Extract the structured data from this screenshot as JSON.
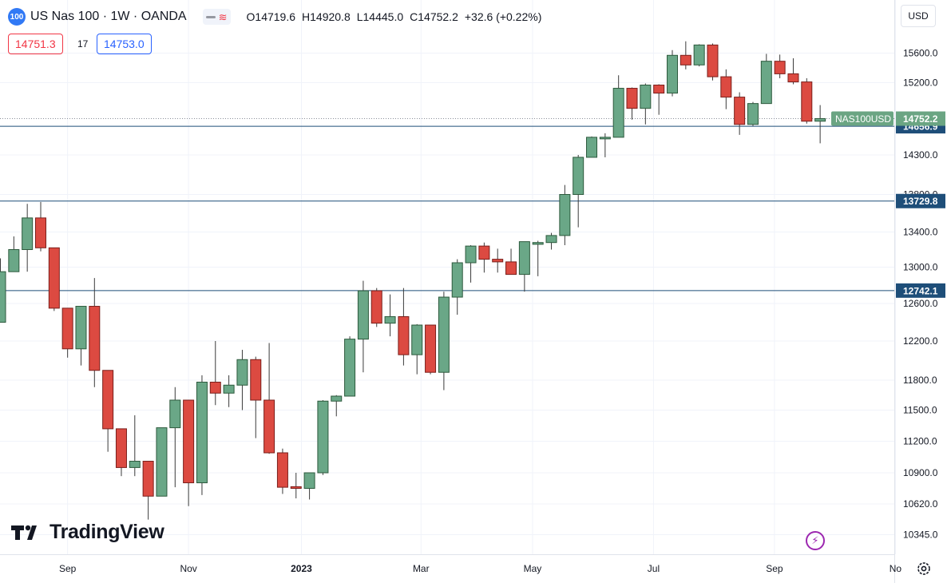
{
  "header": {
    "symbol_badge": "100",
    "title": "US Nas 100 · 1W · OANDA",
    "ohlc": {
      "o": "O14719.6",
      "h": "H14920.8",
      "l": "L14445.0",
      "c": "C14752.2",
      "chg": "+32.6 (+0.22%)"
    }
  },
  "trade": {
    "sell": "14751.3",
    "spread": "17",
    "buy": "14753.0"
  },
  "currency": "USD",
  "brand": "TradingView",
  "colors": {
    "up": "#6aa787",
    "down": "#dc4a41",
    "up_border": "#2d5a3d",
    "down_border": "#7a1f1b",
    "level_line": "#1e4e79",
    "price_tag": "#6ba583",
    "wick": "#3a3a3a"
  },
  "chart_data": {
    "type": "candlestick",
    "title": "US Nas 100 · 1W · OANDA",
    "y_ticks": [
      10345,
      10620,
      10900,
      11200,
      11500,
      11800,
      12200,
      12600,
      13000,
      13400,
      13800,
      14300,
      15200,
      15600
    ],
    "y_tick_labels": [
      "10345.0",
      "10620.0",
      "10900.0",
      "11200.0",
      "11500.0",
      "11800.0",
      "12200.0",
      "12600.0",
      "13000.0",
      "13400.0",
      "13800.0",
      "14300.0",
      "15200.0",
      "15600.0"
    ],
    "x_labels": [
      {
        "label": "Sep",
        "index": 5,
        "bold": false
      },
      {
        "label": "Nov",
        "index": 14,
        "bold": false
      },
      {
        "label": "2023",
        "index": 22.4,
        "bold": true
      },
      {
        "label": "Mar",
        "index": 31.3,
        "bold": false
      },
      {
        "label": "May",
        "index": 39.6,
        "bold": false
      },
      {
        "label": "Jul",
        "index": 48.6,
        "bold": false
      },
      {
        "label": "Sep",
        "index": 57.6,
        "bold": false
      },
      {
        "label": "No",
        "index": 66.6,
        "bold": false
      }
    ],
    "levels": [
      {
        "value": 14656.9,
        "label": "14656.9"
      },
      {
        "value": 13729.8,
        "label": "13729.8"
      },
      {
        "value": 12742.1,
        "label": "12742.1"
      }
    ],
    "current": {
      "symbol": "NAS100USD",
      "value": 14752.2,
      "label": "14752.2"
    },
    "candles": [
      {
        "o": 12400,
        "h": 13100,
        "l": 12400,
        "c": 12950
      },
      {
        "o": 12950,
        "h": 13350,
        "l": 12950,
        "c": 13200
      },
      {
        "o": 13200,
        "h": 13700,
        "l": 12950,
        "c": 13550
      },
      {
        "o": 13550,
        "h": 13720,
        "l": 13180,
        "c": 13220
      },
      {
        "o": 13220,
        "h": 13220,
        "l": 12520,
        "c": 12550
      },
      {
        "o": 12550,
        "h": 12550,
        "l": 12030,
        "c": 12120
      },
      {
        "o": 12120,
        "h": 12570,
        "l": 11950,
        "c": 12570
      },
      {
        "o": 12570,
        "h": 12880,
        "l": 11730,
        "c": 11900
      },
      {
        "o": 11900,
        "h": 11900,
        "l": 11100,
        "c": 11320
      },
      {
        "o": 11320,
        "h": 11320,
        "l": 10870,
        "c": 10950
      },
      {
        "o": 10950,
        "h": 11450,
        "l": 10870,
        "c": 11010
      },
      {
        "o": 11010,
        "h": 11010,
        "l": 10480,
        "c": 10690
      },
      {
        "o": 10690,
        "h": 11330,
        "l": 10690,
        "c": 11330
      },
      {
        "o": 11330,
        "h": 11730,
        "l": 10770,
        "c": 11600
      },
      {
        "o": 11600,
        "h": 11600,
        "l": 10600,
        "c": 10810
      },
      {
        "o": 10810,
        "h": 11850,
        "l": 10700,
        "c": 11780
      },
      {
        "o": 11780,
        "h": 12200,
        "l": 11550,
        "c": 11670
      },
      {
        "o": 11670,
        "h": 11850,
        "l": 11530,
        "c": 11750
      },
      {
        "o": 11750,
        "h": 12110,
        "l": 11500,
        "c": 12010
      },
      {
        "o": 12010,
        "h": 12040,
        "l": 11230,
        "c": 11600
      },
      {
        "o": 11600,
        "h": 12180,
        "l": 11080,
        "c": 11090
      },
      {
        "o": 11090,
        "h": 11130,
        "l": 10710,
        "c": 10770
      },
      {
        "o": 10775,
        "h": 10900,
        "l": 10670,
        "c": 10760
      },
      {
        "o": 10760,
        "h": 10900,
        "l": 10660,
        "c": 10900
      },
      {
        "o": 10900,
        "h": 11600,
        "l": 10880,
        "c": 11590
      },
      {
        "o": 11590,
        "h": 11650,
        "l": 11440,
        "c": 11640
      },
      {
        "o": 11640,
        "h": 12250,
        "l": 11640,
        "c": 12220
      },
      {
        "o": 12220,
        "h": 12850,
        "l": 11880,
        "c": 12740
      },
      {
        "o": 12740,
        "h": 12770,
        "l": 12350,
        "c": 12390
      },
      {
        "o": 12390,
        "h": 12700,
        "l": 12250,
        "c": 12460
      },
      {
        "o": 12460,
        "h": 12770,
        "l": 11950,
        "c": 12060
      },
      {
        "o": 12060,
        "h": 12380,
        "l": 11860,
        "c": 12370
      },
      {
        "o": 12370,
        "h": 12370,
        "l": 11860,
        "c": 11880
      },
      {
        "o": 11880,
        "h": 12730,
        "l": 11700,
        "c": 12670
      },
      {
        "o": 12670,
        "h": 13090,
        "l": 12480,
        "c": 13050
      },
      {
        "o": 13050,
        "h": 13250,
        "l": 12830,
        "c": 13240
      },
      {
        "o": 13240,
        "h": 13280,
        "l": 12940,
        "c": 13090
      },
      {
        "o": 13090,
        "h": 13210,
        "l": 12940,
        "c": 13060
      },
      {
        "o": 13060,
        "h": 13210,
        "l": 12940,
        "c": 12920
      },
      {
        "o": 12920,
        "h": 13280,
        "l": 12730,
        "c": 13290
      },
      {
        "o": 13260,
        "h": 13300,
        "l": 12900,
        "c": 13280
      },
      {
        "o": 13280,
        "h": 13390,
        "l": 13200,
        "c": 13360
      },
      {
        "o": 13360,
        "h": 13920,
        "l": 13250,
        "c": 13800
      },
      {
        "o": 13800,
        "h": 14300,
        "l": 13450,
        "c": 14270
      },
      {
        "o": 14270,
        "h": 14530,
        "l": 14270,
        "c": 14520
      },
      {
        "o": 14520,
        "h": 14570,
        "l": 14270,
        "c": 14520
      },
      {
        "o": 14520,
        "h": 15300,
        "l": 14520,
        "c": 15130
      },
      {
        "o": 15130,
        "h": 15140,
        "l": 14740,
        "c": 14880
      },
      {
        "o": 14880,
        "h": 15190,
        "l": 14680,
        "c": 15170
      },
      {
        "o": 15170,
        "h": 15180,
        "l": 14800,
        "c": 15070
      },
      {
        "o": 15070,
        "h": 15640,
        "l": 15030,
        "c": 15570
      },
      {
        "o": 15570,
        "h": 15760,
        "l": 15380,
        "c": 15440
      },
      {
        "o": 15440,
        "h": 15720,
        "l": 15420,
        "c": 15710
      },
      {
        "o": 15710,
        "h": 15730,
        "l": 15230,
        "c": 15280
      },
      {
        "o": 15280,
        "h": 15380,
        "l": 14870,
        "c": 15020
      },
      {
        "o": 15020,
        "h": 15080,
        "l": 14550,
        "c": 14680
      },
      {
        "o": 14680,
        "h": 14960,
        "l": 14660,
        "c": 14940
      },
      {
        "o": 14940,
        "h": 15590,
        "l": 14940,
        "c": 15490
      },
      {
        "o": 15490,
        "h": 15580,
        "l": 15260,
        "c": 15320
      },
      {
        "o": 15320,
        "h": 15530,
        "l": 15180,
        "c": 15210
      },
      {
        "o": 15210,
        "h": 15260,
        "l": 14690,
        "c": 14720
      },
      {
        "o": 14720,
        "h": 14920.8,
        "l": 14445,
        "c": 14752.2
      }
    ]
  }
}
